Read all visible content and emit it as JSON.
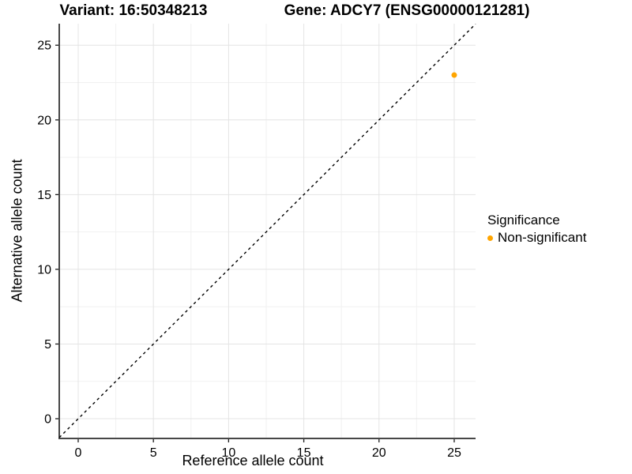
{
  "chart_data": {
    "type": "scatter",
    "titles": {
      "left": "Variant: 16:50348213",
      "right": "Gene: ADCY7 (ENSG00000121281)"
    },
    "xlabel": "Reference allele count",
    "ylabel": "Alternative allele count",
    "x_ticks": [
      0,
      5,
      10,
      15,
      20,
      25
    ],
    "y_ticks": [
      0,
      5,
      10,
      15,
      20,
      25
    ],
    "minor_tick_step": 2.5,
    "xlim": [
      -1.26,
      26.42
    ],
    "ylim": [
      -1.32,
      26.44
    ],
    "grid": "major+minor",
    "reference_line": {
      "type": "identity",
      "slope": 1,
      "intercept": 0,
      "style": "dashed"
    },
    "series": [
      {
        "name": "Non-significant",
        "points": [
          {
            "x": 25,
            "y": 23
          }
        ]
      }
    ],
    "legend": {
      "title": "Significance",
      "position": "right",
      "items": [
        {
          "label": "Non-significant",
          "color": "#FFA500"
        }
      ]
    }
  },
  "colors": {
    "point": "#FFA500",
    "grid_major": "#E4E4E4",
    "grid_minor": "#F1F1F1",
    "axis_line": "#474747",
    "tick_mark": "#1A1A1A",
    "tick_label": "#000000",
    "reference_line": "#000000",
    "background": "#FFFFFF"
  }
}
